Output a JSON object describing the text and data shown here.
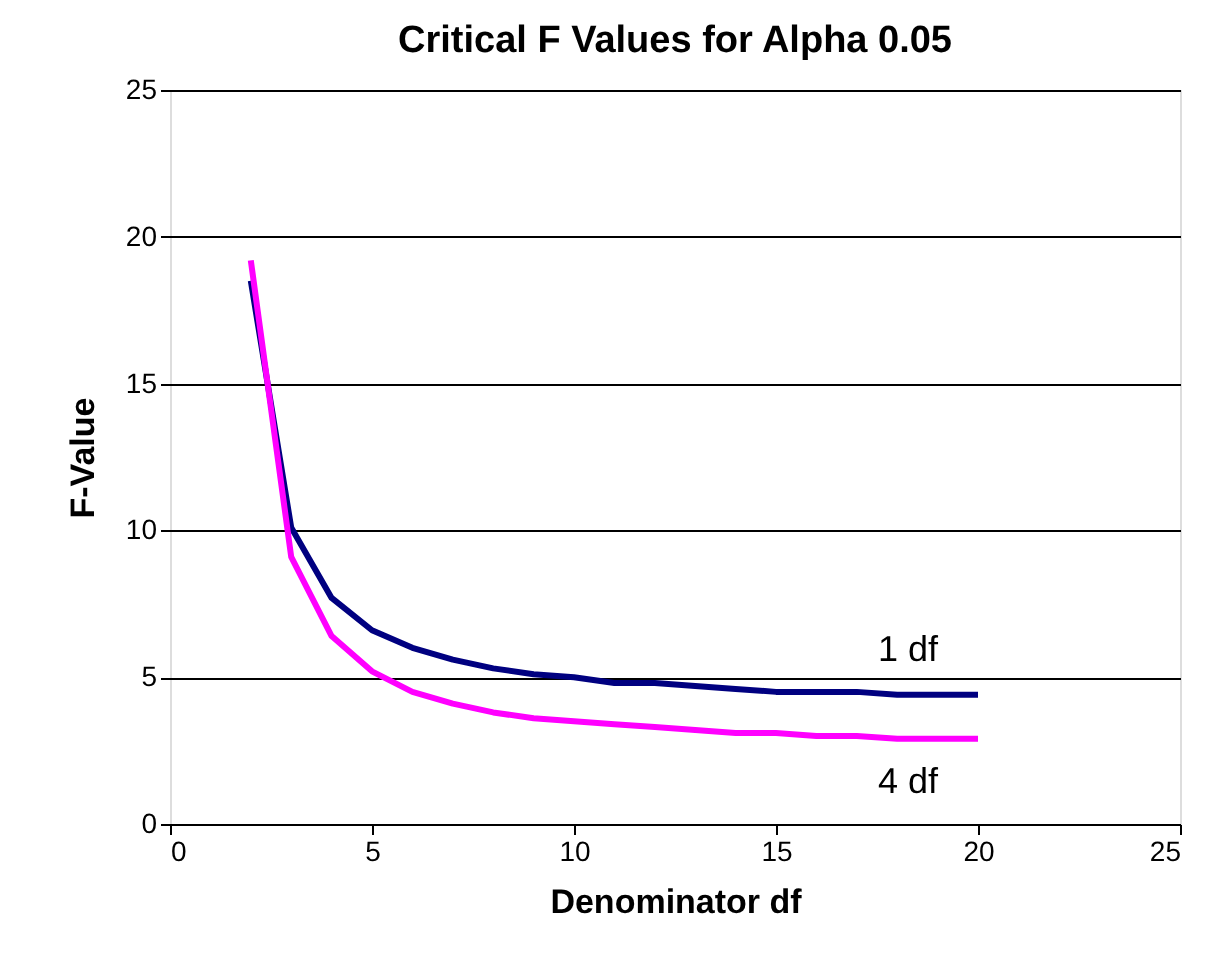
{
  "chart_data": {
    "type": "line",
    "title": "Critical F Values for Alpha 0.05",
    "xlabel": "Denominator df",
    "ylabel": "F-Value",
    "x": [
      2,
      3,
      4,
      5,
      6,
      7,
      8,
      9,
      10,
      11,
      12,
      13,
      14,
      15,
      16,
      17,
      18,
      19,
      20
    ],
    "series": [
      {
        "name": "1 df",
        "color": "#000080",
        "values": [
          18.5,
          10.1,
          7.7,
          6.6,
          6.0,
          5.6,
          5.3,
          5.1,
          5.0,
          4.8,
          4.8,
          4.7,
          4.6,
          4.5,
          4.5,
          4.5,
          4.4,
          4.4,
          4.4
        ]
      },
      {
        "name": "4 df",
        "color": "#ff00ff",
        "values": [
          19.2,
          9.1,
          6.4,
          5.2,
          4.5,
          4.1,
          3.8,
          3.6,
          3.5,
          3.4,
          3.3,
          3.2,
          3.1,
          3.1,
          3.0,
          3.0,
          2.9,
          2.9,
          2.9
        ]
      }
    ],
    "xlim": [
      0,
      25
    ],
    "xticks": [
      0,
      5,
      10,
      15,
      20,
      25
    ],
    "ylim": [
      0,
      25
    ],
    "yticks": [
      0,
      5,
      10,
      15,
      20,
      25
    ],
    "grid": "y",
    "marker": "none",
    "line_style": "solid"
  }
}
